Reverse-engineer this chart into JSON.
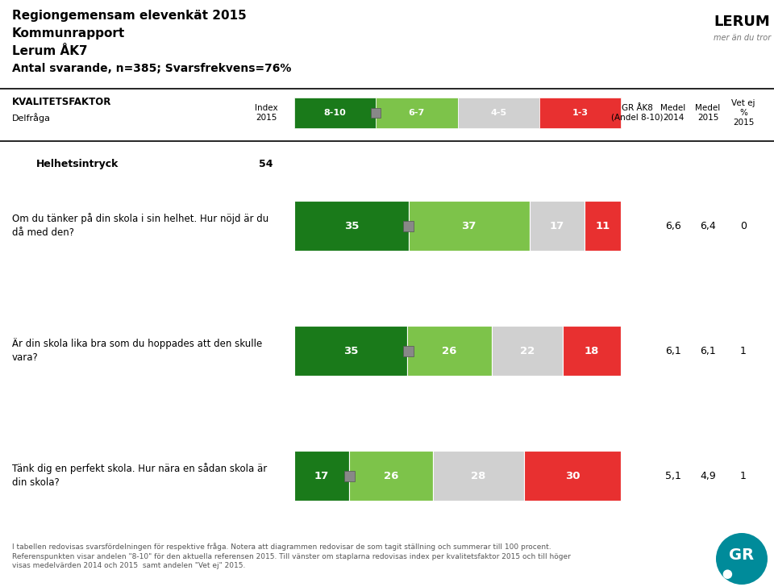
{
  "title_line1": "Regiongemensam elevenkät 2015",
  "title_line2": "Kommunrapport",
  "title_line3": "Lerum ÅK7",
  "title_line4": "Antal svarande, n=385; Svarsfrekvens=76%",
  "section_label": "Helhetsintryck",
  "section_index": "54",
  "legend_labels": [
    "8-10",
    "6-7",
    "4-5",
    "1-3"
  ],
  "colors": [
    "#1a7a1a",
    "#7dc34a",
    "#d0d0d0",
    "#e83030"
  ],
  "gr_marker_color": "#888888",
  "rows": [
    {
      "question": "Om du tänker på din skola i sin helhet. Hur nöjd är du\ndå med den?",
      "values": [
        35,
        37,
        17,
        11
      ],
      "gr_pct": 35,
      "medel2014": "6,6",
      "medel2015": "6,4",
      "vetej": "0"
    },
    {
      "question": "Är din skola lika bra som du hoppades att den skulle\nvara?",
      "values": [
        35,
        26,
        22,
        18
      ],
      "gr_pct": 35,
      "medel2014": "6,1",
      "medel2015": "6,1",
      "vetej": "1"
    },
    {
      "question": "Tänk dig en perfekt skola. Hur nära en sådan skola är\ndin skola?",
      "values": [
        17,
        26,
        28,
        30
      ],
      "gr_pct": 17,
      "medel2014": "5,1",
      "medel2015": "4,9",
      "vetej": "1"
    }
  ],
  "footer_text": "I tabellen redovisas svarsfördelningen för respektive fråga. Notera att diagrammen redovisar de som tagit ställning och summerar till 100 procent.\nReferenspunkten visar andelen \"8-10\" för den aktuella referensen 2015. Till vänster om staplarna redovisas index per kvalitetsfaktor 2015 och till höger\nvisas medelvärden 2014 och 2015  samt andelen \"Vet ej\" 2015."
}
